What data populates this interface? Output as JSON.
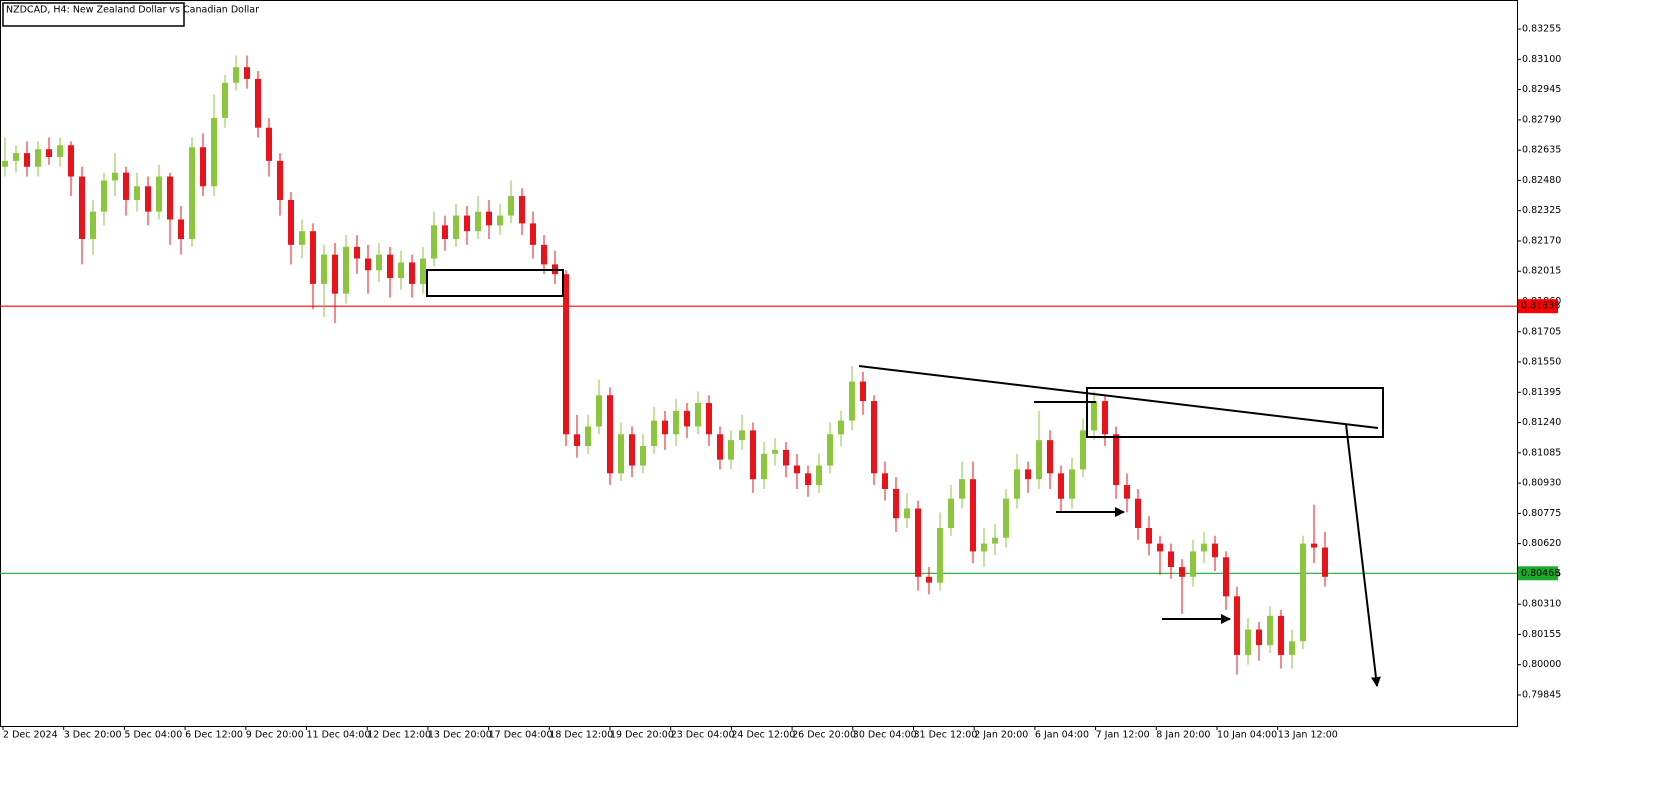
{
  "chart_data": {
    "type": "candlestick",
    "title": "NZDCAD, H4:  New Zealand Dollar vs Canadian Dollar",
    "up_color": "#8cc63f",
    "down_color": "#e8141b",
    "ylim": [
      0.79686,
      0.83404
    ],
    "yticks": [
      0.83255,
      {
        "value": 0.831,
        "label": "0.83100"
      },
      0.82945,
      {
        "value": 0.8279,
        "label": "0.82790"
      },
      0.82635,
      {
        "value": 0.8248,
        "label": "0.82480"
      },
      0.82325,
      {
        "value": 0.8217,
        "label": "0.82170"
      },
      0.82015,
      {
        "value": 0.8186,
        "label": "0.81860"
      },
      0.81705,
      {
        "value": 0.8155,
        "label": "0.81550"
      },
      0.81395,
      {
        "value": 0.8124,
        "label": "0.81240"
      },
      0.81085,
      {
        "value": 0.8093,
        "label": "0.80930"
      },
      0.80775,
      {
        "value": 0.8062,
        "label": "0.80620"
      },
      0.80465,
      {
        "value": 0.8031,
        "label": "0.80310"
      },
      0.80155,
      {
        "value": 0.8,
        "label": "0.80000"
      },
      0.79845
    ],
    "x_labels": [
      "2 Dec 2024",
      "3 Dec 20:00",
      "5 Dec 04:00",
      "6 Dec 12:00",
      "9 Dec 20:00",
      "11 Dec 04:00",
      "12 Dec 12:00",
      "13 Dec 20:00",
      "17 Dec 04:00",
      "18 Dec 12:00",
      "19 Dec 20:00",
      "23 Dec 04:00",
      "24 Dec 12:00",
      "26 Dec 20:00",
      "30 Dec 04:00",
      "31 Dec 12:00",
      "2 Jan 20:00",
      "6 Jan 04:00",
      "7 Jan 12:00",
      "8 Jan 20:00",
      "10 Jan 04:00",
      "13 Jan 12:00"
    ],
    "levels": [
      {
        "value": 0.81836,
        "color": "#ff0000"
      },
      {
        "value": 0.80468,
        "color": "#1aab2b"
      }
    ],
    "candles": [
      [
        0.8255,
        0.827,
        0.825,
        0.8258
      ],
      [
        0.8258,
        0.8266,
        0.8252,
        0.8262
      ],
      [
        0.8262,
        0.8268,
        0.825,
        0.8255
      ],
      [
        0.8255,
        0.8268,
        0.825,
        0.8264
      ],
      [
        0.8264,
        0.827,
        0.8256,
        0.826
      ],
      [
        0.826,
        0.827,
        0.8255,
        0.8266
      ],
      [
        0.8266,
        0.8268,
        0.824,
        0.825
      ],
      [
        0.825,
        0.8255,
        0.8205,
        0.8218
      ],
      [
        0.8218,
        0.8238,
        0.821,
        0.8232
      ],
      [
        0.8232,
        0.8252,
        0.8225,
        0.8248
      ],
      [
        0.8248,
        0.8262,
        0.824,
        0.8252
      ],
      [
        0.8252,
        0.8255,
        0.823,
        0.8238
      ],
      [
        0.8238,
        0.8252,
        0.8232,
        0.8245
      ],
      [
        0.8245,
        0.825,
        0.8225,
        0.8232
      ],
      [
        0.8232,
        0.8256,
        0.8228,
        0.825
      ],
      [
        0.825,
        0.8252,
        0.8215,
        0.8228
      ],
      [
        0.8228,
        0.8235,
        0.821,
        0.8218
      ],
      [
        0.8218,
        0.827,
        0.8214,
        0.8265
      ],
      [
        0.8265,
        0.8272,
        0.824,
        0.8245
      ],
      [
        0.8245,
        0.8292,
        0.824,
        0.828
      ],
      [
        0.828,
        0.8302,
        0.8275,
        0.8298
      ],
      [
        0.8298,
        0.8312,
        0.8294,
        0.8306
      ],
      [
        0.8306,
        0.8312,
        0.8295,
        0.83
      ],
      [
        0.83,
        0.8304,
        0.827,
        0.8275
      ],
      [
        0.8275,
        0.828,
        0.825,
        0.8258
      ],
      [
        0.8258,
        0.8262,
        0.823,
        0.8238
      ],
      [
        0.8238,
        0.8242,
        0.8205,
        0.8215
      ],
      [
        0.8215,
        0.8228,
        0.8208,
        0.8222
      ],
      [
        0.8222,
        0.8226,
        0.8182,
        0.8195
      ],
      [
        0.8195,
        0.8215,
        0.8178,
        0.821
      ],
      [
        0.821,
        0.8216,
        0.8175,
        0.819
      ],
      [
        0.819,
        0.822,
        0.8185,
        0.8214
      ],
      [
        0.8214,
        0.822,
        0.82,
        0.8208
      ],
      [
        0.8208,
        0.8215,
        0.819,
        0.8202
      ],
      [
        0.8202,
        0.8216,
        0.8196,
        0.821
      ],
      [
        0.821,
        0.8214,
        0.8188,
        0.8198
      ],
      [
        0.8198,
        0.8212,
        0.8192,
        0.8206
      ],
      [
        0.8206,
        0.821,
        0.8188,
        0.8195
      ],
      [
        0.8195,
        0.8214,
        0.819,
        0.8208
      ],
      [
        0.8208,
        0.8232,
        0.8204,
        0.8225
      ],
      [
        0.8225,
        0.823,
        0.8212,
        0.8218
      ],
      [
        0.8218,
        0.8236,
        0.8214,
        0.823
      ],
      [
        0.823,
        0.8235,
        0.8215,
        0.8222
      ],
      [
        0.8222,
        0.824,
        0.8218,
        0.8232
      ],
      [
        0.8232,
        0.8238,
        0.8218,
        0.8225
      ],
      [
        0.8225,
        0.8236,
        0.822,
        0.823
      ],
      [
        0.823,
        0.8248,
        0.8226,
        0.824
      ],
      [
        0.824,
        0.8244,
        0.822,
        0.8226
      ],
      [
        0.8226,
        0.8232,
        0.8208,
        0.8215
      ],
      [
        0.8215,
        0.822,
        0.82,
        0.8205
      ],
      [
        0.8205,
        0.8212,
        0.8195,
        0.82
      ],
      [
        0.82,
        0.8202,
        0.8112,
        0.8118
      ],
      [
        0.8118,
        0.8128,
        0.8106,
        0.8112
      ],
      [
        0.8112,
        0.8128,
        0.8108,
        0.8122
      ],
      [
        0.8122,
        0.8146,
        0.8118,
        0.8138
      ],
      [
        0.8138,
        0.8142,
        0.8092,
        0.8098
      ],
      [
        0.8098,
        0.8124,
        0.8094,
        0.8118
      ],
      [
        0.8118,
        0.8122,
        0.8096,
        0.8102
      ],
      [
        0.8102,
        0.8118,
        0.8098,
        0.8112
      ],
      [
        0.8112,
        0.8132,
        0.8108,
        0.8125
      ],
      [
        0.8125,
        0.813,
        0.811,
        0.8118
      ],
      [
        0.8118,
        0.8136,
        0.8112,
        0.813
      ],
      [
        0.813,
        0.8134,
        0.8116,
        0.8122
      ],
      [
        0.8122,
        0.814,
        0.8118,
        0.8134
      ],
      [
        0.8134,
        0.8138,
        0.8112,
        0.8118
      ],
      [
        0.8118,
        0.8122,
        0.81,
        0.8105
      ],
      [
        0.8105,
        0.812,
        0.81,
        0.8115
      ],
      [
        0.8115,
        0.8128,
        0.811,
        0.812
      ],
      [
        0.812,
        0.8124,
        0.8088,
        0.8095
      ],
      [
        0.8095,
        0.8114,
        0.809,
        0.8108
      ],
      [
        0.8108,
        0.8116,
        0.8102,
        0.811
      ],
      [
        0.811,
        0.8114,
        0.8096,
        0.8102
      ],
      [
        0.8102,
        0.8108,
        0.809,
        0.8098
      ],
      [
        0.8098,
        0.8102,
        0.8086,
        0.8092
      ],
      [
        0.8092,
        0.8108,
        0.8088,
        0.8102
      ],
      [
        0.8102,
        0.8124,
        0.8098,
        0.8118
      ],
      [
        0.8118,
        0.813,
        0.8112,
        0.8125
      ],
      [
        0.8125,
        0.8153,
        0.812,
        0.8145
      ],
      [
        0.8145,
        0.815,
        0.8128,
        0.8135
      ],
      [
        0.8135,
        0.8138,
        0.8092,
        0.8098
      ],
      [
        0.8098,
        0.8104,
        0.8084,
        0.809
      ],
      [
        0.809,
        0.8096,
        0.8068,
        0.8075
      ],
      [
        0.8075,
        0.8088,
        0.807,
        0.808
      ],
      [
        0.808,
        0.8084,
        0.8038,
        0.8045
      ],
      [
        0.8045,
        0.805,
        0.8036,
        0.8042
      ],
      [
        0.8042,
        0.8078,
        0.8038,
        0.807
      ],
      [
        0.807,
        0.8092,
        0.8066,
        0.8085
      ],
      [
        0.8085,
        0.8104,
        0.808,
        0.8095
      ],
      [
        0.8095,
        0.8104,
        0.8052,
        0.8058
      ],
      [
        0.8058,
        0.807,
        0.805,
        0.8062
      ],
      [
        0.8062,
        0.8072,
        0.8056,
        0.8065
      ],
      [
        0.8065,
        0.809,
        0.806,
        0.8085
      ],
      [
        0.8085,
        0.8108,
        0.808,
        0.81
      ],
      [
        0.81,
        0.8104,
        0.8088,
        0.8095
      ],
      [
        0.8095,
        0.813,
        0.809,
        0.8115
      ],
      [
        0.8115,
        0.812,
        0.809,
        0.8098
      ],
      [
        0.8098,
        0.8102,
        0.8078,
        0.8085
      ],
      [
        0.8085,
        0.8106,
        0.808,
        0.81
      ],
      [
        0.81,
        0.8126,
        0.8096,
        0.812
      ],
      [
        0.812,
        0.814,
        0.8115,
        0.8135
      ],
      [
        0.8135,
        0.8138,
        0.8112,
        0.8118
      ],
      [
        0.8118,
        0.8122,
        0.8085,
        0.8092
      ],
      [
        0.8092,
        0.8098,
        0.8078,
        0.8085
      ],
      [
        0.8085,
        0.809,
        0.8064,
        0.807
      ],
      [
        0.807,
        0.8076,
        0.8056,
        0.8062
      ],
      [
        0.8062,
        0.8066,
        0.8046,
        0.8058
      ],
      [
        0.8058,
        0.8062,
        0.8044,
        0.805
      ],
      [
        0.805,
        0.8054,
        0.8026,
        0.8045
      ],
      [
        0.8045,
        0.8064,
        0.804,
        0.8058
      ],
      [
        0.8058,
        0.8068,
        0.8052,
        0.8062
      ],
      [
        0.8062,
        0.8066,
        0.8048,
        0.8055
      ],
      [
        0.8055,
        0.8058,
        0.8028,
        0.8035
      ],
      [
        0.8035,
        0.804,
        0.7995,
        0.8005
      ],
      [
        0.8005,
        0.8024,
        0.8,
        0.8018
      ],
      [
        0.8018,
        0.8022,
        0.8002,
        0.801
      ],
      [
        0.801,
        0.803,
        0.8006,
        0.8025
      ],
      [
        0.8025,
        0.8028,
        0.7998,
        0.8005
      ],
      [
        0.8005,
        0.8018,
        0.7998,
        0.8012
      ],
      [
        0.8012,
        0.8066,
        0.8008,
        0.8062
      ],
      [
        0.8062,
        0.8082,
        0.8052,
        0.806
      ],
      [
        0.806,
        0.8068,
        0.804,
        0.8045
      ]
    ]
  }
}
